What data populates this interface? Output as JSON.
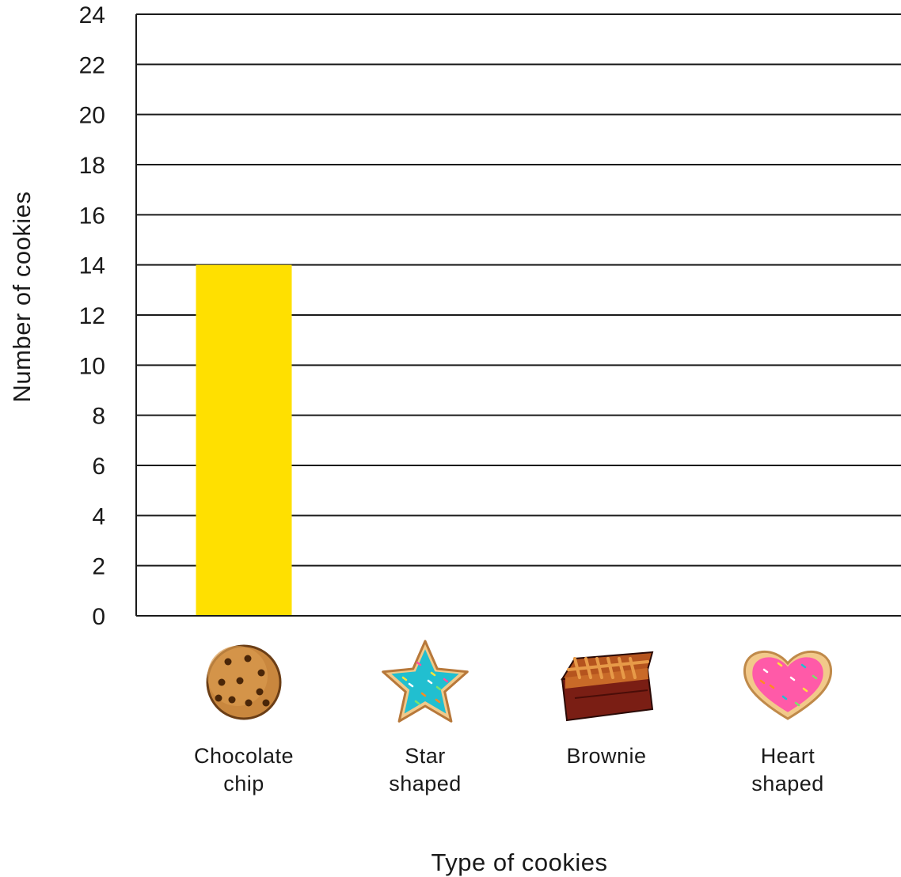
{
  "chart_data": {
    "type": "bar",
    "title": "",
    "xlabel": "Type of cookies",
    "ylabel": "Number of cookies",
    "ylim": [
      0,
      24
    ],
    "yticks": [
      0,
      2,
      4,
      6,
      8,
      10,
      12,
      14,
      16,
      18,
      20,
      22,
      24
    ],
    "grid": true,
    "categories": [
      {
        "label": [
          "Chocolate",
          "chip"
        ],
        "icon": "chocolate-chip-cookie-icon"
      },
      {
        "label": [
          "Star",
          "shaped"
        ],
        "icon": "star-cookie-icon"
      },
      {
        "label": [
          "Brownie"
        ],
        "icon": "brownie-icon"
      },
      {
        "label": [
          "Heart",
          "shaped"
        ],
        "icon": "heart-cookie-icon"
      }
    ],
    "values": [
      14,
      null,
      null,
      null
    ],
    "bar_color": "#FFE000"
  }
}
